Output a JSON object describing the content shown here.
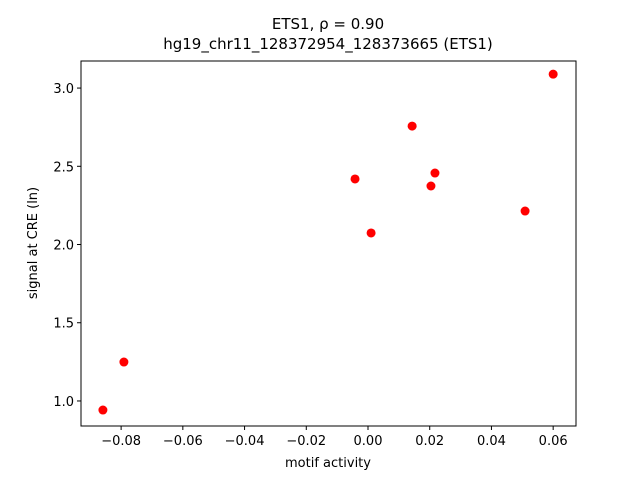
{
  "chart_data": {
    "type": "scatter",
    "title": "ETS1, ρ = 0.90",
    "subtitle": "hg19_chr11_128372954_128373665 (ETS1)",
    "x_label": "motif activity",
    "y_label": "signal at CRE (ln)",
    "color": "#ff0000",
    "x": [
      -0.0859,
      -0.0791,
      -0.0042,
      0.001,
      0.0143,
      0.0204,
      0.0217,
      0.0509,
      0.06
    ],
    "values": [
      0.942,
      1.249,
      2.419,
      2.074,
      2.757,
      2.374,
      2.457,
      2.214,
      3.089
    ],
    "xlim": [
      -0.093,
      0.0674
    ],
    "ylim": [
      0.84,
      3.173
    ],
    "xticks": [
      {
        "value": -0.08,
        "label": "−0.08"
      },
      {
        "value": -0.06,
        "label": "−0.06"
      },
      {
        "value": -0.04,
        "label": "−0.04"
      },
      {
        "value": -0.02,
        "label": "−0.02"
      },
      {
        "value": 0.0,
        "label": "0.00"
      },
      0.02,
      0.04,
      0.06
    ],
    "yticks": [
      {
        "value": 1.0,
        "label": "1.0"
      },
      1.5,
      {
        "value": 2.0,
        "label": "2.0"
      },
      2.5,
      {
        "value": 3.0,
        "label": "3.0"
      }
    ]
  }
}
